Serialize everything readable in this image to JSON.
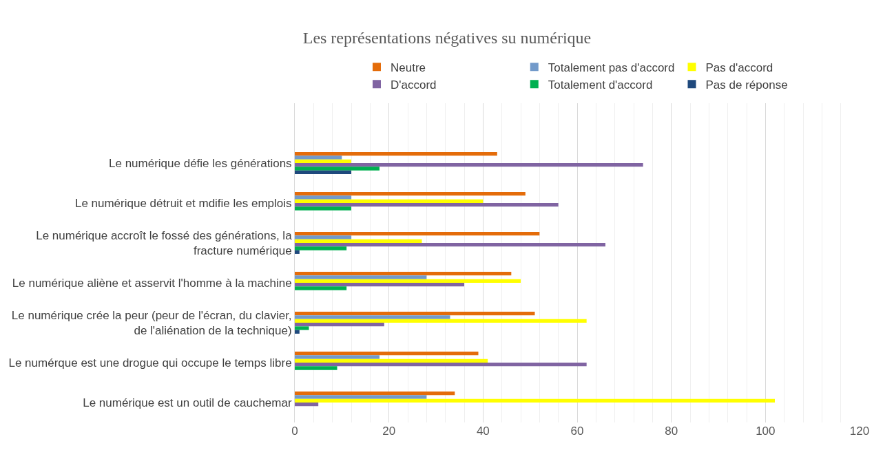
{
  "chart_data": {
    "type": "bar",
    "orientation": "horizontal",
    "title": "Les représentations négatives su numérique",
    "categories": [
      null,
      "Le numérique défie les générations",
      "Le numérique détruit et mdifie les emplois",
      "Le numérique accroît le fossé des générations, la fracture numérique",
      "Le numérique aliène et asservit l'homme à la machine",
      "Le numérique crée la peur (peur de l'écran, du clavier, de l'aliénation de la technique)",
      "Le numérque est une drogue qui occupe le temps libre",
      "Le numérique est un outil de cauchemar"
    ],
    "series": [
      {
        "name": "Neutre",
        "color": "#e46c0a",
        "values": [
          null,
          43,
          49,
          52,
          46,
          51,
          39,
          34
        ]
      },
      {
        "name": "Totalement pas d'accord",
        "color": "#729aca",
        "values": [
          null,
          10,
          12,
          12,
          28,
          33,
          18,
          28
        ]
      },
      {
        "name": "Pas d'accord",
        "color": "#ffff00",
        "values": [
          null,
          12,
          40,
          27,
          48,
          62,
          41,
          102
        ]
      },
      {
        "name": "D'accord",
        "color": "#8064a2",
        "values": [
          null,
          74,
          56,
          66,
          36,
          19,
          62,
          5
        ]
      },
      {
        "name": "Totalement d'accord",
        "color": "#00b050",
        "values": [
          null,
          18,
          12,
          11,
          11,
          3,
          9,
          null
        ]
      },
      {
        "name": "Pas de réponse",
        "color": "#1f497d",
        "values": [
          null,
          12,
          null,
          1,
          null,
          1,
          null,
          null
        ]
      }
    ],
    "xlim": [
      0,
      120
    ],
    "xticks": [
      0,
      20,
      40,
      60,
      80,
      100,
      120
    ],
    "grid": "x",
    "legend": "top"
  }
}
